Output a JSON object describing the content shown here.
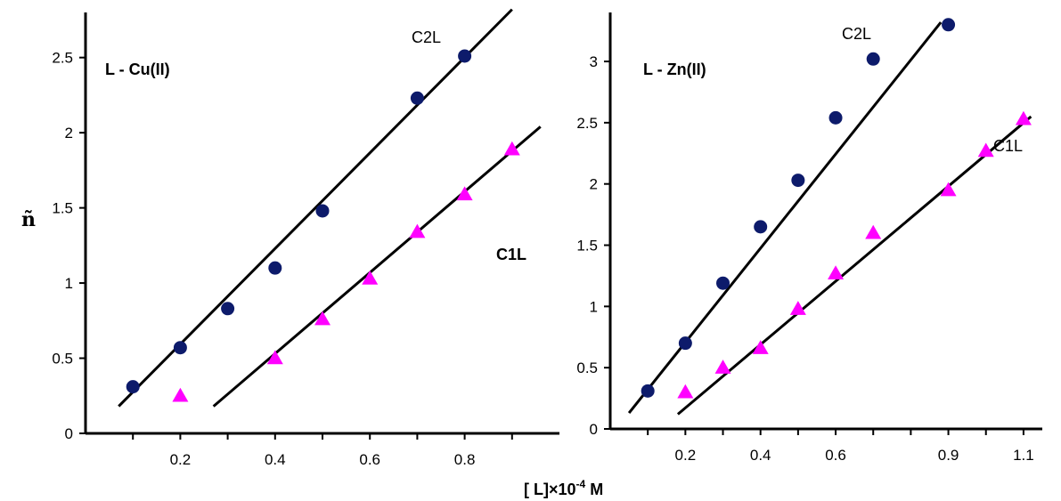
{
  "figure": {
    "ylabel": "ñ",
    "xlabel_main": "[ L]×10",
    "xlabel_exp": "-4",
    "xlabel_unit": " M"
  },
  "chart_data": [
    {
      "type": "scatter",
      "title": "L - Cu(II)",
      "xlabel": "[ L]×10^-4 M",
      "ylabel": "ñ",
      "xlim": [
        0,
        1.0
      ],
      "ylim": [
        0,
        2.8
      ],
      "xticks": [
        "0.2",
        "0.4",
        "0.6",
        "0.8"
      ],
      "yticks": [
        "0",
        "0.5",
        "1",
        "1.5",
        "2",
        "2.5"
      ],
      "xtick_values": [
        0.2,
        0.4,
        0.6,
        0.8
      ],
      "ytick_values": [
        0,
        0.5,
        1,
        1.5,
        2,
        2.5
      ],
      "series": [
        {
          "name": "C2L",
          "marker": "circle",
          "color": "#0d1b6b",
          "x": [
            0.1,
            0.2,
            0.3,
            0.4,
            0.5,
            0.7,
            0.8
          ],
          "y": [
            0.31,
            0.57,
            0.83,
            1.1,
            1.48,
            2.23,
            2.51
          ],
          "fit": [
            [
              0.07,
              0.18
            ],
            [
              0.9,
              2.82
            ]
          ]
        },
        {
          "name": "C1L",
          "marker": "triangle",
          "color": "#ff00ff",
          "x": [
            0.2,
            0.4,
            0.5,
            0.6,
            0.7,
            0.8,
            0.9
          ],
          "y": [
            0.25,
            0.5,
            0.76,
            1.03,
            1.34,
            1.59,
            1.89
          ],
          "fit": [
            [
              0.27,
              0.18
            ],
            [
              0.96,
              2.04
            ]
          ]
        }
      ]
    },
    {
      "type": "scatter",
      "title": "L - Zn(II)",
      "xlabel": "[ L]×10^-4 M",
      "ylabel": "ñ",
      "xlim": [
        0,
        1.15
      ],
      "ylim": [
        0,
        3.4
      ],
      "xticks": [
        "0.2",
        "0.4",
        "0.6",
        "0.9",
        "1.1"
      ],
      "yticks": [
        "0",
        "0.5",
        "1",
        "1.5",
        "2",
        "2.5",
        "3"
      ],
      "xtick_values": [
        0.2,
        0.4,
        0.6,
        0.9,
        1.1
      ],
      "ytick_values": [
        0,
        0.5,
        1,
        1.5,
        2,
        2.5,
        3
      ],
      "series": [
        {
          "name": "C2L",
          "marker": "circle",
          "color": "#0d1b6b",
          "x": [
            0.1,
            0.2,
            0.3,
            0.4,
            0.5,
            0.6,
            0.7,
            0.9
          ],
          "y": [
            0.31,
            0.7,
            1.19,
            1.65,
            2.03,
            2.54,
            3.02,
            3.3
          ],
          "fit": [
            [
              0.05,
              0.13
            ],
            [
              0.88,
              3.32
            ]
          ]
        },
        {
          "name": "C1L",
          "marker": "triangle",
          "color": "#ff00ff",
          "x": [
            0.2,
            0.3,
            0.4,
            0.5,
            0.6,
            0.7,
            0.9,
            1.0,
            1.1
          ],
          "y": [
            0.3,
            0.5,
            0.66,
            0.98,
            1.27,
            1.6,
            1.95,
            2.27,
            2.53
          ],
          "fit": [
            [
              0.18,
              0.12
            ],
            [
              1.12,
              2.55
            ]
          ]
        }
      ]
    }
  ]
}
